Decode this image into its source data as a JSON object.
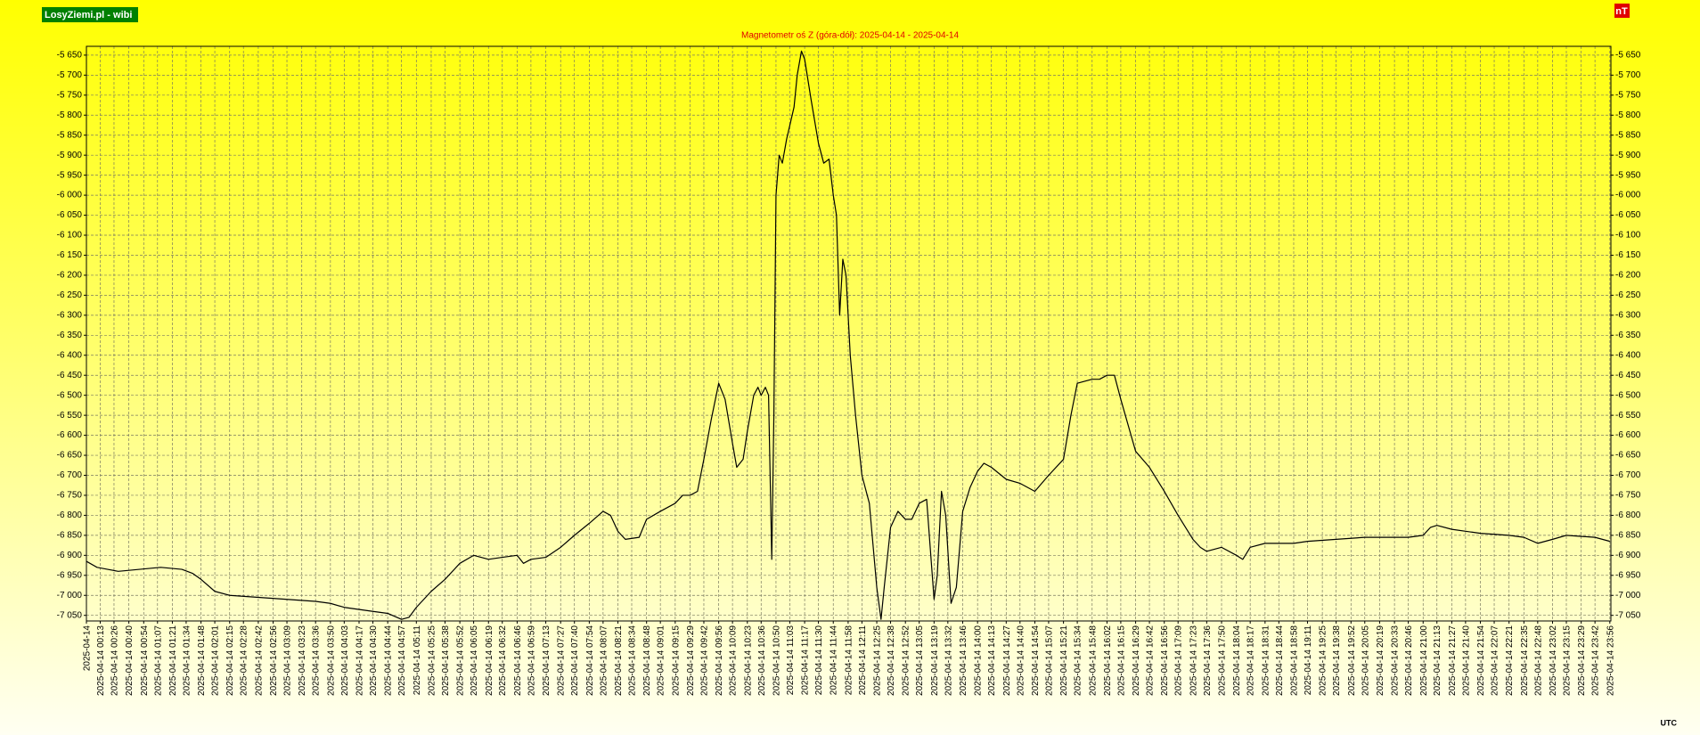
{
  "chart_data": {
    "type": "line",
    "brand": "LosyZiemi.pl - wibi",
    "title": "Magnetometr oś Z (góra-dół): 2025-04-14 - 2025-04-14",
    "unit_label": "nT",
    "timezone_label": "UTC",
    "color": "#000000",
    "grid": true,
    "xlim": [
      0,
      1437
    ],
    "ylim": [
      -7064,
      -5628
    ],
    "yticks": [
      {
        "value": -5650,
        "label": "-5 650"
      },
      {
        "value": -5700,
        "label": "-5 700"
      },
      {
        "value": -5750,
        "label": "-5 750"
      },
      {
        "value": -5800,
        "label": "-5 800"
      },
      {
        "value": -5850,
        "label": "-5 850"
      },
      {
        "value": -5900,
        "label": "-5 900"
      },
      {
        "value": -5950,
        "label": "-5 950"
      },
      {
        "value": -6000,
        "label": "-6 000"
      },
      {
        "value": -6050,
        "label": "-6 050"
      },
      {
        "value": -6100,
        "label": "-6 100"
      },
      {
        "value": -6150,
        "label": "-6 150"
      },
      {
        "value": -6200,
        "label": "-6 200"
      },
      {
        "value": -6250,
        "label": "-6 250"
      },
      {
        "value": -6300,
        "label": "-6 300"
      },
      {
        "value": -6350,
        "label": "-6 350"
      },
      {
        "value": -6400,
        "label": "-6 400"
      },
      {
        "value": -6450,
        "label": "-6 450"
      },
      {
        "value": -6500,
        "label": "-6 500"
      },
      {
        "value": -6550,
        "label": "-6 550"
      },
      {
        "value": -6600,
        "label": "-6 600"
      },
      {
        "value": -6650,
        "label": "-6 650"
      },
      {
        "value": -6700,
        "label": "-6 700"
      },
      {
        "value": -6750,
        "label": "-6 750"
      },
      {
        "value": -6800,
        "label": "-6 800"
      },
      {
        "value": -6850,
        "label": "-6 850"
      },
      {
        "value": -6900,
        "label": "-6 900"
      },
      {
        "value": -6950,
        "label": "-6 950"
      },
      {
        "value": -7000,
        "label": "-7 000"
      },
      {
        "value": -7050,
        "label": "-7 050"
      }
    ],
    "xticks": [
      {
        "value": 0,
        "label": "2025-04-14"
      },
      {
        "value": 13,
        "label": "2025-04-14 00:13"
      },
      {
        "value": 26,
        "label": "2025-04-14 00:26"
      },
      {
        "value": 40,
        "label": "2025-04-14 00:40"
      },
      {
        "value": 54,
        "label": "2025-04-14 00:54"
      },
      {
        "value": 67,
        "label": "2025-04-14 01:07"
      },
      {
        "value": 81,
        "label": "2025-04-14 01:21"
      },
      {
        "value": 94,
        "label": "2025-04-14 01:34"
      },
      {
        "value": 108,
        "label": "2025-04-14 01:48"
      },
      {
        "value": 121,
        "label": "2025-04-14 02:01"
      },
      {
        "value": 135,
        "label": "2025-04-14 02:15"
      },
      {
        "value": 148,
        "label": "2025-04-14 02:28"
      },
      {
        "value": 162,
        "label": "2025-04-14 02:42"
      },
      {
        "value": 176,
        "label": "2025-04-14 02:56"
      },
      {
        "value": 189,
        "label": "2025-04-14 03:09"
      },
      {
        "value": 203,
        "label": "2025-04-14 03:23"
      },
      {
        "value": 216,
        "label": "2025-04-14 03:36"
      },
      {
        "value": 230,
        "label": "2025-04-14 03:50"
      },
      {
        "value": 243,
        "label": "2025-04-14 04:03"
      },
      {
        "value": 257,
        "label": "2025-04-14 04:17"
      },
      {
        "value": 270,
        "label": "2025-04-14 04:30"
      },
      {
        "value": 284,
        "label": "2025-04-14 04:44"
      },
      {
        "value": 297,
        "label": "2025-04-14 04:57"
      },
      {
        "value": 311,
        "label": "2025-04-14 05:11"
      },
      {
        "value": 325,
        "label": "2025-04-14 05:25"
      },
      {
        "value": 338,
        "label": "2025-04-14 05:38"
      },
      {
        "value": 352,
        "label": "2025-04-14 05:52"
      },
      {
        "value": 365,
        "label": "2025-04-14 06:05"
      },
      {
        "value": 379,
        "label": "2025-04-14 06:19"
      },
      {
        "value": 392,
        "label": "2025-04-14 06:32"
      },
      {
        "value": 406,
        "label": "2025-04-14 06:46"
      },
      {
        "value": 419,
        "label": "2025-04-14 06:59"
      },
      {
        "value": 433,
        "label": "2025-04-14 07:13"
      },
      {
        "value": 447,
        "label": "2025-04-14 07:27"
      },
      {
        "value": 460,
        "label": "2025-04-14 07:40"
      },
      {
        "value": 474,
        "label": "2025-04-14 07:54"
      },
      {
        "value": 487,
        "label": "2025-04-14 08:07"
      },
      {
        "value": 501,
        "label": "2025-04-14 08:21"
      },
      {
        "value": 514,
        "label": "2025-04-14 08:34"
      },
      {
        "value": 528,
        "label": "2025-04-14 08:48"
      },
      {
        "value": 541,
        "label": "2025-04-14 09:01"
      },
      {
        "value": 555,
        "label": "2025-04-14 09:15"
      },
      {
        "value": 569,
        "label": "2025-04-14 09:29"
      },
      {
        "value": 582,
        "label": "2025-04-14 09:42"
      },
      {
        "value": 596,
        "label": "2025-04-14 09:56"
      },
      {
        "value": 609,
        "label": "2025-04-14 10:09"
      },
      {
        "value": 623,
        "label": "2025-04-14 10:23"
      },
      {
        "value": 636,
        "label": "2025-04-14 10:36"
      },
      {
        "value": 650,
        "label": "2025-04-14 10:50"
      },
      {
        "value": 663,
        "label": "2025-04-14 11:03"
      },
      {
        "value": 677,
        "label": "2025-04-14 11:17"
      },
      {
        "value": 690,
        "label": "2025-04-14 11:30"
      },
      {
        "value": 704,
        "label": "2025-04-14 11:44"
      },
      {
        "value": 718,
        "label": "2025-04-14 11:58"
      },
      {
        "value": 731,
        "label": "2025-04-14 12:11"
      },
      {
        "value": 745,
        "label": "2025-04-14 12:25"
      },
      {
        "value": 758,
        "label": "2025-04-14 12:38"
      },
      {
        "value": 772,
        "label": "2025-04-14 12:52"
      },
      {
        "value": 785,
        "label": "2025-04-14 13:05"
      },
      {
        "value": 799,
        "label": "2025-04-14 13:19"
      },
      {
        "value": 812,
        "label": "2025-04-14 13:32"
      },
      {
        "value": 826,
        "label": "2025-04-14 13:46"
      },
      {
        "value": 840,
        "label": "2025-04-14 14:00"
      },
      {
        "value": 853,
        "label": "2025-04-14 14:13"
      },
      {
        "value": 867,
        "label": "2025-04-14 14:27"
      },
      {
        "value": 880,
        "label": "2025-04-14 14:40"
      },
      {
        "value": 894,
        "label": "2025-04-14 14:54"
      },
      {
        "value": 907,
        "label": "2025-04-14 15:07"
      },
      {
        "value": 921,
        "label": "2025-04-14 15:21"
      },
      {
        "value": 934,
        "label": "2025-04-14 15:34"
      },
      {
        "value": 948,
        "label": "2025-04-14 15:48"
      },
      {
        "value": 962,
        "label": "2025-04-14 16:02"
      },
      {
        "value": 975,
        "label": "2025-04-14 16:15"
      },
      {
        "value": 989,
        "label": "2025-04-14 16:29"
      },
      {
        "value": 1002,
        "label": "2025-04-14 16:42"
      },
      {
        "value": 1016,
        "label": "2025-04-14 16:56"
      },
      {
        "value": 1029,
        "label": "2025-04-14 17:09"
      },
      {
        "value": 1043,
        "label": "2025-04-14 17:23"
      },
      {
        "value": 1056,
        "label": "2025-04-14 17:36"
      },
      {
        "value": 1070,
        "label": "2025-04-14 17:50"
      },
      {
        "value": 1084,
        "label": "2025-04-14 18:04"
      },
      {
        "value": 1097,
        "label": "2025-04-14 18:17"
      },
      {
        "value": 1111,
        "label": "2025-04-14 18:31"
      },
      {
        "value": 1124,
        "label": "2025-04-14 18:44"
      },
      {
        "value": 1138,
        "label": "2025-04-14 18:58"
      },
      {
        "value": 1151,
        "label": "2025-04-14 19:11"
      },
      {
        "value": 1165,
        "label": "2025-04-14 19:25"
      },
      {
        "value": 1178,
        "label": "2025-04-14 19:38"
      },
      {
        "value": 1192,
        "label": "2025-04-14 19:52"
      },
      {
        "value": 1205,
        "label": "2025-04-14 20:05"
      },
      {
        "value": 1219,
        "label": "2025-04-14 20:19"
      },
      {
        "value": 1233,
        "label": "2025-04-14 20:33"
      },
      {
        "value": 1246,
        "label": "2025-04-14 20:46"
      },
      {
        "value": 1260,
        "label": "2025-04-14 21:00"
      },
      {
        "value": 1273,
        "label": "2025-04-14 21:13"
      },
      {
        "value": 1287,
        "label": "2025-04-14 21:27"
      },
      {
        "value": 1300,
        "label": "2025-04-14 21:40"
      },
      {
        "value": 1314,
        "label": "2025-04-14 21:54"
      },
      {
        "value": 1327,
        "label": "2025-04-14 22:07"
      },
      {
        "value": 1341,
        "label": "2025-04-14 22:21"
      },
      {
        "value": 1355,
        "label": "2025-04-14 22:35"
      },
      {
        "value": 1368,
        "label": "2025-04-14 22:48"
      },
      {
        "value": 1382,
        "label": "2025-04-14 23:02"
      },
      {
        "value": 1395,
        "label": "2025-04-14 23:15"
      },
      {
        "value": 1409,
        "label": "2025-04-14 23:29"
      },
      {
        "value": 1422,
        "label": "2025-04-14 23:42"
      },
      {
        "value": 1436,
        "label": "2025-04-14 23:56"
      }
    ],
    "x": [
      0,
      10,
      20,
      30,
      50,
      70,
      90,
      100,
      108,
      121,
      135,
      162,
      189,
      216,
      230,
      243,
      270,
      284,
      297,
      304,
      311,
      325,
      338,
      352,
      365,
      379,
      392,
      406,
      412,
      419,
      433,
      447,
      460,
      474,
      487,
      494,
      501,
      508,
      521,
      528,
      541,
      548,
      555,
      562,
      569,
      576,
      582,
      589,
      596,
      602,
      609,
      613,
      619,
      623,
      629,
      633,
      636,
      640,
      643,
      646,
      648,
      650,
      653,
      656,
      660,
      667,
      670,
      674,
      677,
      683,
      690,
      695,
      700,
      704,
      707,
      710,
      713,
      716,
      720,
      725,
      731,
      738,
      745,
      749,
      752,
      758,
      765,
      772,
      778,
      785,
      792,
      799,
      802,
      806,
      810,
      815,
      820,
      826,
      833,
      840,
      846,
      853,
      867,
      880,
      894,
      907,
      921,
      928,
      934,
      948,
      955,
      962,
      969,
      975,
      989,
      1002,
      1016,
      1029,
      1043,
      1050,
      1056,
      1070,
      1084,
      1090,
      1097,
      1111,
      1124,
      1138,
      1151,
      1178,
      1205,
      1233,
      1246,
      1260,
      1267,
      1273,
      1287,
      1314,
      1341,
      1355,
      1368,
      1382,
      1395,
      1422,
      1436
    ],
    "values": [
      -6915,
      -6930,
      -6935,
      -6940,
      -6935,
      -6930,
      -6935,
      -6945,
      -6960,
      -6990,
      -7000,
      -7005,
      -7010,
      -7015,
      -7020,
      -7030,
      -7040,
      -7045,
      -7060,
      -7055,
      -7030,
      -6990,
      -6960,
      -6920,
      -6900,
      -6910,
      -6905,
      -6900,
      -6920,
      -6910,
      -6905,
      -6880,
      -6850,
      -6820,
      -6790,
      -6800,
      -6840,
      -6860,
      -6855,
      -6810,
      -6790,
      -6780,
      -6770,
      -6750,
      -6750,
      -6740,
      -6660,
      -6560,
      -6470,
      -6510,
      -6620,
      -6680,
      -6660,
      -6590,
      -6500,
      -6480,
      -6500,
      -6480,
      -6500,
      -6910,
      -6550,
      -6000,
      -5900,
      -5920,
      -5860,
      -5780,
      -5700,
      -5640,
      -5660,
      -5760,
      -5870,
      -5920,
      -5910,
      -6000,
      -6050,
      -6300,
      -6160,
      -6200,
      -6400,
      -6550,
      -6700,
      -6770,
      -6980,
      -7060,
      -6980,
      -6830,
      -6790,
      -6810,
      -6810,
      -6770,
      -6760,
      -7010,
      -6950,
      -6740,
      -6800,
      -7020,
      -6980,
      -6790,
      -6730,
      -6690,
      -6670,
      -6680,
      -6710,
      -6720,
      -6740,
      -6700,
      -6660,
      -6550,
      -6470,
      -6460,
      -6460,
      -6450,
      -6450,
      -6510,
      -6640,
      -6680,
      -6740,
      -6800,
      -6860,
      -6880,
      -6890,
      -6880,
      -6900,
      -6910,
      -6880,
      -6870,
      -6870,
      -6870,
      -6865,
      -6860,
      -6855,
      -6855,
      -6855,
      -6850,
      -6830,
      -6825,
      -6835,
      -6845,
      -6850,
      -6855,
      -6870,
      -6860,
      -6850,
      -6855,
      -6865
    ]
  }
}
